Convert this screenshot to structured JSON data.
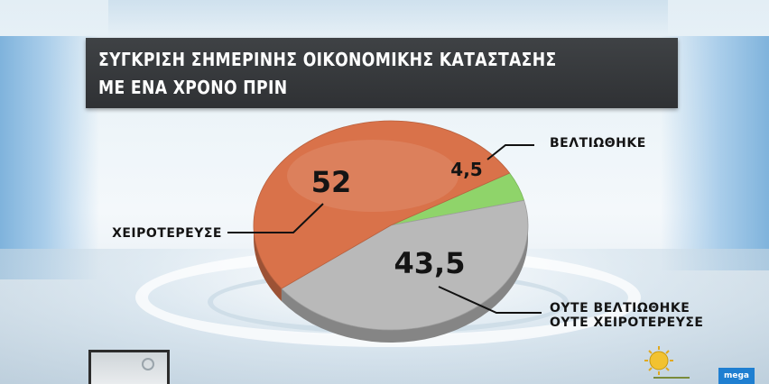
{
  "title": {
    "line1": "ΣΥΓΚΡΙΣΗ ΣΗΜΕΡΙΝΗΣ ΟΙΚΟΝΟΜΙΚΗΣ ΚΑΤΑΣΤΑΣΗΣ",
    "line2": "ΜΕ ΕΝΑ ΧΡΟΝΟ ΠΡΙΝ"
  },
  "chart_data": {
    "type": "pie",
    "title": "ΣΥΓΚΡΙΣΗ ΣΗΜΕΡΙΝΗΣ ΟΙΚΟΝΟΜΙΚΗΣ ΚΑΤΑΣΤΑΣΗΣ ΜΕ ΕΝΑ ΧΡΟΝΟ ΠΡΙΝ",
    "slices": [
      {
        "label": "ΒΕΛΤΙΩΘΗΚΕ",
        "value": 4.5,
        "display": "4,5",
        "color": "#8fd46a"
      },
      {
        "label_lines": [
          "ΟΥΤΕ ΒΕΛΤΙΩΘΗΚΕ",
          "ΟΥΤΕ ΧΕΙΡΟΤΕΡΕΥΣΕ"
        ],
        "value": 43.5,
        "display": "43,5",
        "color": "#b9b9b9"
      },
      {
        "label": "ΧΕΙΡΟΤΕΡΕΥΣΕ",
        "value": 52,
        "display": "52",
        "color": "#d9724a"
      }
    ],
    "legend": "callout-labels"
  },
  "footer": {
    "logo_icon": "sun-logo-icon",
    "badge_text": "mega"
  }
}
